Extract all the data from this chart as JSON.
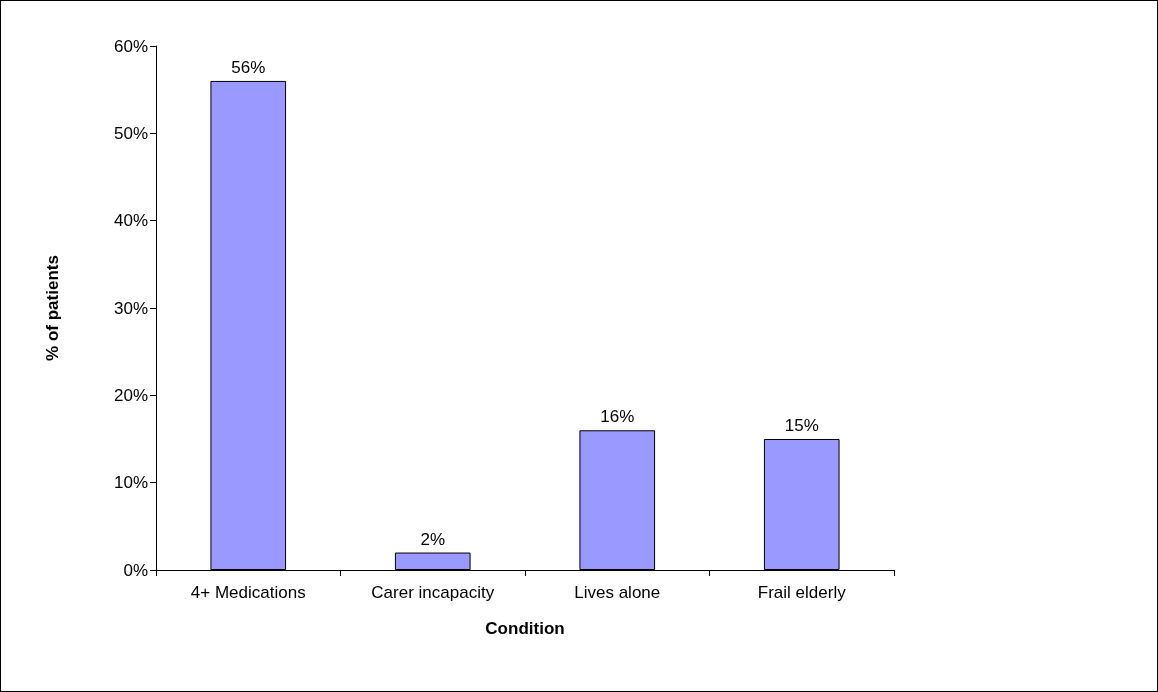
{
  "chart_data": {
    "type": "bar",
    "xlabel": "Condition",
    "ylabel": "% of patients",
    "categories": [
      "4+ Medications",
      "Carer incapacity",
      "Lives alone",
      "Frail elderly"
    ],
    "values": [
      56,
      2,
      16,
      15
    ],
    "color": "#9999ff",
    "ylim": [
      0,
      60
    ],
    "yticks": [
      {
        "value": 0,
        "label": "0%"
      },
      {
        "value": 10,
        "label": "10%"
      },
      {
        "value": 20,
        "label": "20%"
      },
      {
        "value": 30,
        "label": "30%"
      },
      {
        "value": 40,
        "label": "40%"
      },
      {
        "value": 50,
        "label": "50%"
      },
      {
        "value": 60,
        "label": "60%"
      }
    ],
    "value_labels": [
      "56%",
      "2%",
      "16%",
      "15%"
    ],
    "grid": false
  }
}
